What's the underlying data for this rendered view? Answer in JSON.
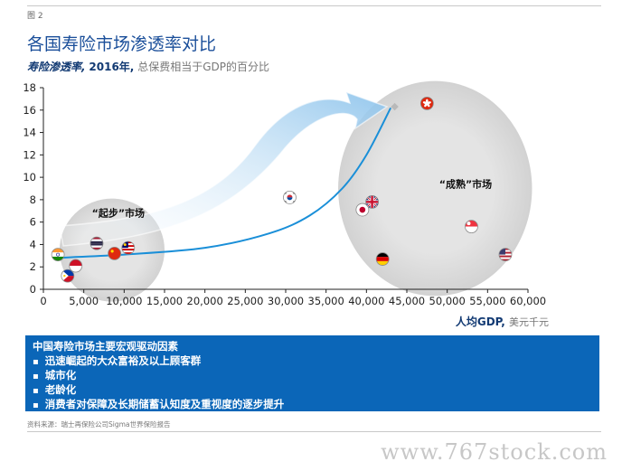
{
  "page": {
    "figure_label": "图 2",
    "title": "各国寿险市场渗透率对比",
    "subtitle_bold": "寿险渗透率,",
    "subtitle_year": "2016年,",
    "subtitle_rest": "总保费相当于GDP的百分比"
  },
  "chart_data": {
    "type": "scatter",
    "xlabel_bold": "人均GDP,",
    "xlabel_unit": "美元千元",
    "ylabel": "",
    "xlim": [
      0,
      60000
    ],
    "ylim": [
      0,
      18
    ],
    "x_ticks": [
      0,
      5000,
      10000,
      15000,
      20000,
      25000,
      30000,
      35000,
      40000,
      45000,
      50000,
      55000,
      60000
    ],
    "x_tick_labels": [
      "0",
      "5,000",
      "10,000",
      "15,000",
      "20,000",
      "25,000",
      "30,000",
      "35,000",
      "40,000",
      "45,000",
      "50,000",
      "55,000",
      "60,000"
    ],
    "y_ticks": [
      0,
      2,
      4,
      6,
      8,
      10,
      12,
      14,
      16,
      18
    ],
    "y_tick_labels": [
      "0",
      "2",
      "4",
      "6",
      "8",
      "10",
      "12",
      "14",
      "16",
      "18"
    ],
    "grid": false,
    "annotations": [
      {
        "text": "“起步”市场",
        "x": 6000,
        "y": 6.5
      },
      {
        "text": "“成熟”市场",
        "x": 49000,
        "y": 9.1
      }
    ],
    "clusters": [
      {
        "center_x": 8500,
        "center_y": 3.5,
        "radius_x": 6500,
        "radius_y": 4.6
      },
      {
        "center_x": 48500,
        "center_y": 9.0,
        "radius_x": 12000,
        "radius_y": 9.6
      }
    ],
    "trend_curve": [
      {
        "x": 1500,
        "y": 2.8
      },
      {
        "x": 10000,
        "y": 3.1
      },
      {
        "x": 20000,
        "y": 3.7
      },
      {
        "x": 28000,
        "y": 5.0
      },
      {
        "x": 33000,
        "y": 6.6
      },
      {
        "x": 37000,
        "y": 9.0
      },
      {
        "x": 40000,
        "y": 12.0
      },
      {
        "x": 43000,
        "y": 16.2
      }
    ],
    "trend_end_marker": {
      "x": 43500,
      "y": 16.3
    },
    "points": [
      {
        "icon": "india-flag-icon",
        "x": 1800,
        "y": 3.1
      },
      {
        "icon": "philippines-flag-icon",
        "x": 3000,
        "y": 1.2
      },
      {
        "icon": "indonesia-flag-icon",
        "x": 4000,
        "y": 2.1
      },
      {
        "icon": "thailand-flag-icon",
        "x": 6600,
        "y": 4.1
      },
      {
        "icon": "china-flag-icon",
        "x": 8800,
        "y": 3.2
      },
      {
        "icon": "malaysia-flag-icon",
        "x": 10500,
        "y": 3.7
      },
      {
        "icon": "south-korea-flag-icon",
        "x": 30500,
        "y": 8.2
      },
      {
        "icon": "japan-flag-icon",
        "x": 39500,
        "y": 7.1
      },
      {
        "icon": "uk-flag-icon",
        "x": 40700,
        "y": 7.8
      },
      {
        "icon": "germany-flag-icon",
        "x": 42000,
        "y": 2.7
      },
      {
        "icon": "hong-kong-flag-icon",
        "x": 47500,
        "y": 16.6
      },
      {
        "icon": "singapore-flag-icon",
        "x": 53000,
        "y": 5.6
      },
      {
        "icon": "usa-flag-icon",
        "x": 57200,
        "y": 3.1
      }
    ]
  },
  "callout": {
    "heading": "中国寿险市场主要宏观驱动因素",
    "items": [
      "迅速崛起的大众富裕及以上顾客群",
      "城市化",
      "老龄化",
      "消费者对保障及长期储蓄认知度及重视度的逐步提升"
    ]
  },
  "source": "资料来源：瑞士再保险公司Sigma世界保险报告",
  "watermark": "www.767stock.com",
  "colors": {
    "title": "#1b4f9a",
    "callout_bg": "#0b66b8",
    "trend_line": "#1a8fd8",
    "arrow": "#9fcdf0",
    "cluster": "#dcdcdc"
  }
}
